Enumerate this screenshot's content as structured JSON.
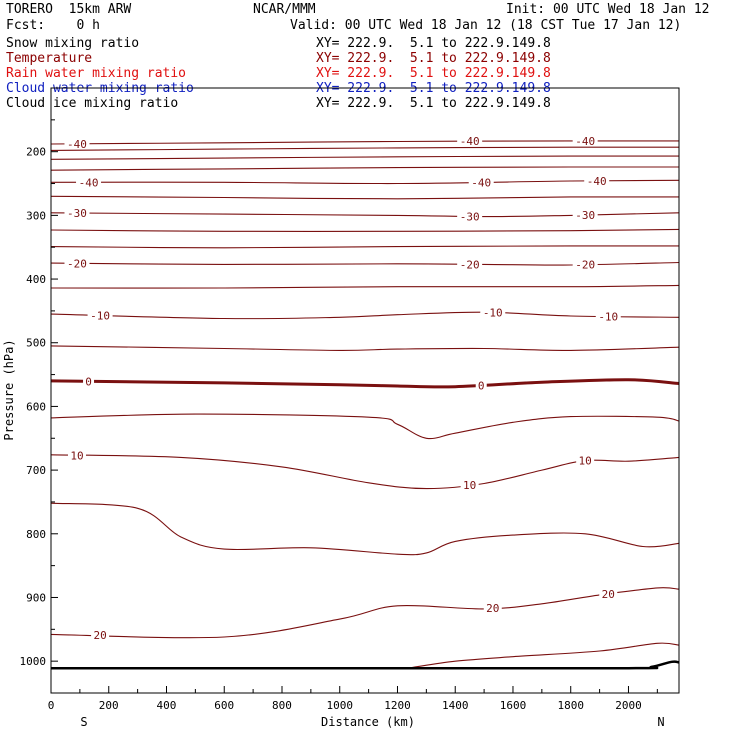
{
  "header": {
    "model": "TORERO  15km ARW",
    "center": "NCAR/MMM",
    "init": "Init: 00 UTC Wed 18 Jan 12",
    "fcst": "Fcst:    0 h",
    "valid": "Valid: 00 UTC Wed 18 Jan 12 (18 CST Tue 17 Jan 12)"
  },
  "fields": [
    {
      "name": "Snow mixing ratio",
      "xy": "XY= 222.9.  5.1 to 222.9.149.8",
      "color": "#000000"
    },
    {
      "name": "Temperature",
      "xy": "XY= 222.9.  5.1 to 222.9.149.8",
      "color": "#8b0000"
    },
    {
      "name": "Rain water mixing ratio",
      "xy": "XY= 222.9.  5.1 to 222.9.149.8",
      "color": "#e01010"
    },
    {
      "name": "Cloud water mixing ratio",
      "xy": "XY= 222.9.  5.1 to 222.9.149.8",
      "color": "#1020c0"
    },
    {
      "name": "Cloud ice mixing ratio",
      "xy": "XY= 222.9.  5.1 to 222.9.149.8",
      "color": "#000000"
    }
  ],
  "chart_data": {
    "type": "line",
    "title": "",
    "xlabel": "Distance (km)",
    "ylabel": "Pressure (hPa)",
    "xlim": [
      0,
      2175
    ],
    "ylim": [
      1050,
      100
    ],
    "xticks": [
      0,
      200,
      400,
      600,
      800,
      1000,
      1200,
      1400,
      1600,
      1800,
      2000
    ],
    "yticks": [
      200,
      300,
      400,
      500,
      600,
      700,
      800,
      900,
      1000
    ],
    "end_labels": {
      "left": "S",
      "right": "N"
    },
    "line_color": "#7a1010",
    "isotherms": [
      {
        "label": "-40",
        "points": [
          [
            0,
            188
          ],
          [
            600,
            186
          ],
          [
            1200,
            184
          ],
          [
            1800,
            183
          ],
          [
            2175,
            183
          ]
        ]
      },
      {
        "label": "",
        "points": [
          [
            0,
            198
          ],
          [
            600,
            196
          ],
          [
            1200,
            194
          ],
          [
            1800,
            193
          ],
          [
            2175,
            193
          ]
        ]
      },
      {
        "label": "",
        "points": [
          [
            0,
            212
          ],
          [
            600,
            210
          ],
          [
            1200,
            208
          ],
          [
            1800,
            207
          ],
          [
            2175,
            207
          ]
        ]
      },
      {
        "label": "",
        "points": [
          [
            0,
            229
          ],
          [
            600,
            227
          ],
          [
            1200,
            225
          ],
          [
            1800,
            224
          ],
          [
            2175,
            224
          ]
        ]
      },
      {
        "label": "-40",
        "points": [
          [
            0,
            248
          ],
          [
            600,
            248
          ],
          [
            1200,
            250
          ],
          [
            1800,
            246
          ],
          [
            2175,
            245
          ]
        ]
      },
      {
        "label": "",
        "points": [
          [
            0,
            270
          ],
          [
            600,
            272
          ],
          [
            1200,
            274
          ],
          [
            1800,
            271
          ],
          [
            2175,
            271
          ]
        ]
      },
      {
        "label": "-30",
        "points": [
          [
            0,
            296
          ],
          [
            600,
            298
          ],
          [
            1200,
            300
          ],
          [
            1500,
            302
          ],
          [
            1800,
            300
          ],
          [
            2175,
            296
          ]
        ]
      },
      {
        "label": "",
        "points": [
          [
            0,
            323
          ],
          [
            600,
            325
          ],
          [
            1200,
            325
          ],
          [
            1800,
            324
          ],
          [
            2175,
            322
          ]
        ]
      },
      {
        "label": "",
        "points": [
          [
            0,
            349
          ],
          [
            600,
            351
          ],
          [
            1200,
            349
          ],
          [
            1800,
            348
          ],
          [
            2175,
            348
          ]
        ]
      },
      {
        "label": "-20",
        "points": [
          [
            0,
            375
          ],
          [
            600,
            377
          ],
          [
            1200,
            376
          ],
          [
            1500,
            377
          ],
          [
            1800,
            378
          ],
          [
            2175,
            374
          ]
        ]
      },
      {
        "label": "",
        "points": [
          [
            0,
            414
          ],
          [
            600,
            414
          ],
          [
            1200,
            412
          ],
          [
            1800,
            412
          ],
          [
            2175,
            410
          ]
        ]
      },
      {
        "label": "-10",
        "points": [
          [
            0,
            455
          ],
          [
            600,
            462
          ],
          [
            1000,
            460
          ],
          [
            1200,
            456
          ],
          [
            1500,
            452
          ],
          [
            1800,
            458
          ],
          [
            2175,
            460
          ]
        ]
      },
      {
        "label": "",
        "points": [
          [
            0,
            505
          ],
          [
            600,
            509
          ],
          [
            1000,
            512
          ],
          [
            1200,
            510
          ],
          [
            1500,
            509
          ],
          [
            1800,
            512
          ],
          [
            2175,
            507
          ]
        ]
      },
      {
        "label": "0",
        "points": [
          [
            0,
            560
          ],
          [
            600,
            563
          ],
          [
            1000,
            566
          ],
          [
            1200,
            568
          ],
          [
            1400,
            569
          ],
          [
            1700,
            562
          ],
          [
            2000,
            558
          ],
          [
            2175,
            564
          ]
        ]
      },
      {
        "label": "",
        "points": [
          [
            0,
            618
          ],
          [
            500,
            612
          ],
          [
            1100,
            617
          ],
          [
            1200,
            628
          ],
          [
            1300,
            650
          ],
          [
            1400,
            642
          ],
          [
            1600,
            625
          ],
          [
            1800,
            616
          ],
          [
            2100,
            617
          ],
          [
            2175,
            623
          ]
        ]
      },
      {
        "label": "10",
        "points": [
          [
            0,
            676
          ],
          [
            450,
            680
          ],
          [
            800,
            695
          ],
          [
            1100,
            720
          ],
          [
            1300,
            729
          ],
          [
            1500,
            721
          ],
          [
            1700,
            700
          ],
          [
            1850,
            685
          ],
          [
            2000,
            686
          ],
          [
            2175,
            680
          ]
        ]
      },
      {
        "label": "",
        "points": [
          [
            0,
            752
          ],
          [
            300,
            760
          ],
          [
            450,
            805
          ],
          [
            600,
            824
          ],
          [
            900,
            822
          ],
          [
            1200,
            832
          ],
          [
            1300,
            830
          ],
          [
            1400,
            812
          ],
          [
            1600,
            802
          ],
          [
            1850,
            800
          ],
          [
            2050,
            820
          ],
          [
            2175,
            815
          ]
        ]
      },
      {
        "label": "20",
        "points": [
          [
            0,
            958
          ],
          [
            600,
            962
          ],
          [
            1000,
            934
          ],
          [
            1200,
            913
          ],
          [
            1500,
            918
          ],
          [
            1700,
            910
          ],
          [
            1900,
            896
          ],
          [
            2100,
            885
          ],
          [
            2175,
            887
          ]
        ]
      },
      {
        "label": "",
        "points": [
          [
            1250,
            1010
          ],
          [
            1400,
            1000
          ],
          [
            1600,
            993
          ],
          [
            1900,
            984
          ],
          [
            2100,
            972
          ],
          [
            2175,
            975
          ]
        ]
      }
    ],
    "ground": [
      [
        0,
        1011
      ],
      [
        1000,
        1011
      ],
      [
        2000,
        1011
      ],
      [
        2080,
        1009
      ],
      [
        2150,
        1001
      ],
      [
        2175,
        1002
      ]
    ]
  }
}
